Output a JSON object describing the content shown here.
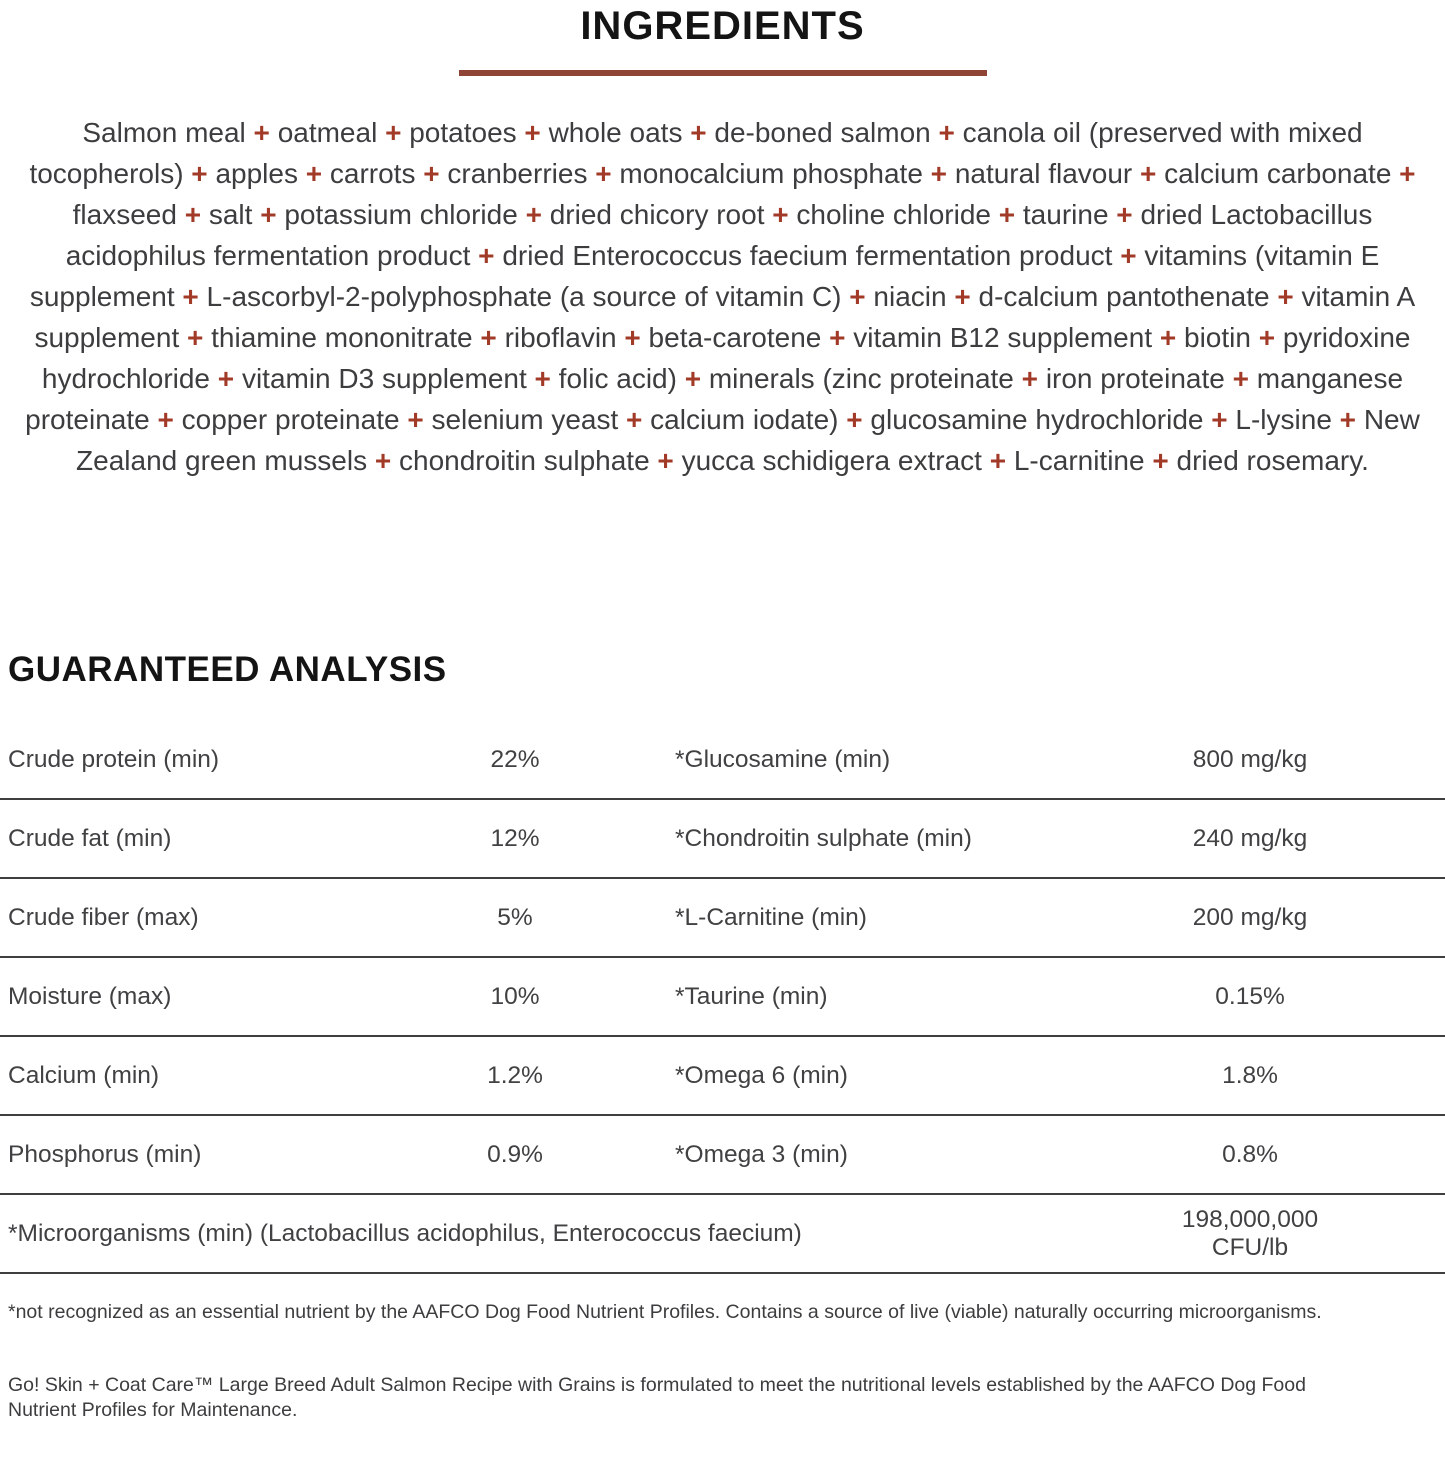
{
  "page": {
    "title": "INGREDIENTS",
    "rule_color": "#8F4435",
    "plus_color": "#A23A28",
    "heading_color": "#141414",
    "body_text_color": "#3d3d3f"
  },
  "ingredients": {
    "separator": "+",
    "items": [
      "Salmon meal",
      "oatmeal",
      "potatoes",
      "whole oats",
      "de-boned salmon",
      "canola oil (preserved with mixed tocopherols)",
      "apples",
      "carrots",
      "cranberries",
      "monocalcium phosphate",
      "natural flavour",
      "calcium carbonate",
      "flaxseed",
      "salt",
      "potassium chloride",
      "dried chicory root",
      "choline chloride",
      "taurine",
      "dried Lactobacillus acidophilus fermentation product",
      "dried Enterococcus faecium fermentation product",
      "vitamins (vitamin E supplement",
      "L-ascorbyl-2-polyphosphate (a source of vitamin C)",
      "niacin",
      "d-calcium pantothenate",
      "vitamin A supplement",
      "thiamine mononitrate",
      "riboflavin",
      "beta-carotene",
      "vitamin B12 supplement",
      "biotin",
      "pyridoxine hydrochloride",
      "vitamin D3 supplement",
      "folic acid)",
      "minerals (zinc proteinate",
      "iron proteinate",
      "manganese proteinate",
      "copper proteinate",
      "selenium yeast",
      "calcium iodate)",
      "glucosamine hydrochloride",
      "L-lysine",
      "New Zealand green mussels",
      "chondroitin sulphate",
      "yucca schidigera extract",
      "L-carnitine",
      "dried rosemary."
    ]
  },
  "analysis": {
    "heading": "GUARANTEED ANALYSIS",
    "rows": [
      {
        "l_label": "Crude protein (min)",
        "l_value": "22%",
        "r_label": "*Glucosamine (min)",
        "r_value": "800 mg/kg"
      },
      {
        "l_label": "Crude fat (min)",
        "l_value": "12%",
        "r_label": "*Chondroitin sulphate (min)",
        "r_value": "240 mg/kg"
      },
      {
        "l_label": "Crude fiber (max)",
        "l_value": "5%",
        "r_label": "*L-Carnitine (min)",
        "r_value": "200 mg/kg"
      },
      {
        "l_label": "Moisture (max)",
        "l_value": "10%",
        "r_label": "*Taurine (min)",
        "r_value": "0.15%"
      },
      {
        "l_label": "Calcium (min)",
        "l_value": "1.2%",
        "r_label": "*Omega 6 (min)",
        "r_value": "1.8%"
      },
      {
        "l_label": "Phosphorus (min)",
        "l_value": "0.9%",
        "r_label": "*Omega 3 (min)",
        "r_value": "0.8%"
      }
    ],
    "wide_row": {
      "label": "*Microorganisms (min) (Lactobacillus acidophilus, Enterococcus faecium)",
      "value": "198,000,000 CFU/lb"
    }
  },
  "footnotes": {
    "asterisk_note": "*not recognized as an essential nutrient by the AAFCO Dog Food Nutrient Profiles. Contains a source of live (viable) naturally occurring microorganisms.",
    "aafco_statement": "Go! Skin + Coat Care™ Large Breed Adult Salmon Recipe with Grains is formulated to meet the nutritional levels established by the AAFCO Dog Food Nutrient Profiles for Maintenance."
  }
}
